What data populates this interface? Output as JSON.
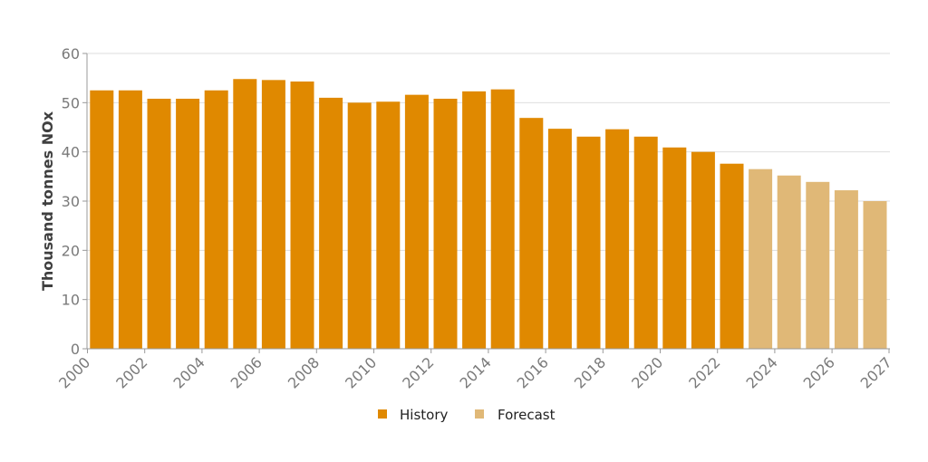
{
  "chart_data": {
    "type": "bar",
    "ylabel": "Thousand tonnes NOx",
    "ylim": [
      0,
      60
    ],
    "yticks": [
      0,
      10,
      20,
      30,
      40,
      50,
      60
    ],
    "grid": true,
    "legend_position": "bottom-center",
    "xtick_labels": [
      "2000",
      "2002",
      "2004",
      "2006",
      "2008",
      "2010",
      "2012",
      "2014",
      "2016",
      "2018",
      "2020",
      "2022",
      "2024",
      "2026",
      "2027"
    ],
    "series": [
      {
        "name": "History",
        "color": "#e08900",
        "x": [
          2000,
          2001,
          2002,
          2003,
          2004,
          2005,
          2006,
          2007,
          2008,
          2009,
          2010,
          2011,
          2012,
          2013,
          2014,
          2015,
          2016,
          2017,
          2018,
          2019,
          2020,
          2021,
          2022
        ],
        "values": [
          52.5,
          52.5,
          50.8,
          50.8,
          52.5,
          54.8,
          54.6,
          54.3,
          51.0,
          50.0,
          50.2,
          51.6,
          50.8,
          52.3,
          52.7,
          46.9,
          44.7,
          43.1,
          44.6,
          43.1,
          40.9,
          40.0,
          37.6
        ]
      },
      {
        "name": "Forecast",
        "color": "#e0b877",
        "x": [
          2023,
          2024,
          2025,
          2026,
          2027
        ],
        "values": [
          36.5,
          35.2,
          33.9,
          32.2,
          30.0
        ]
      }
    ]
  }
}
